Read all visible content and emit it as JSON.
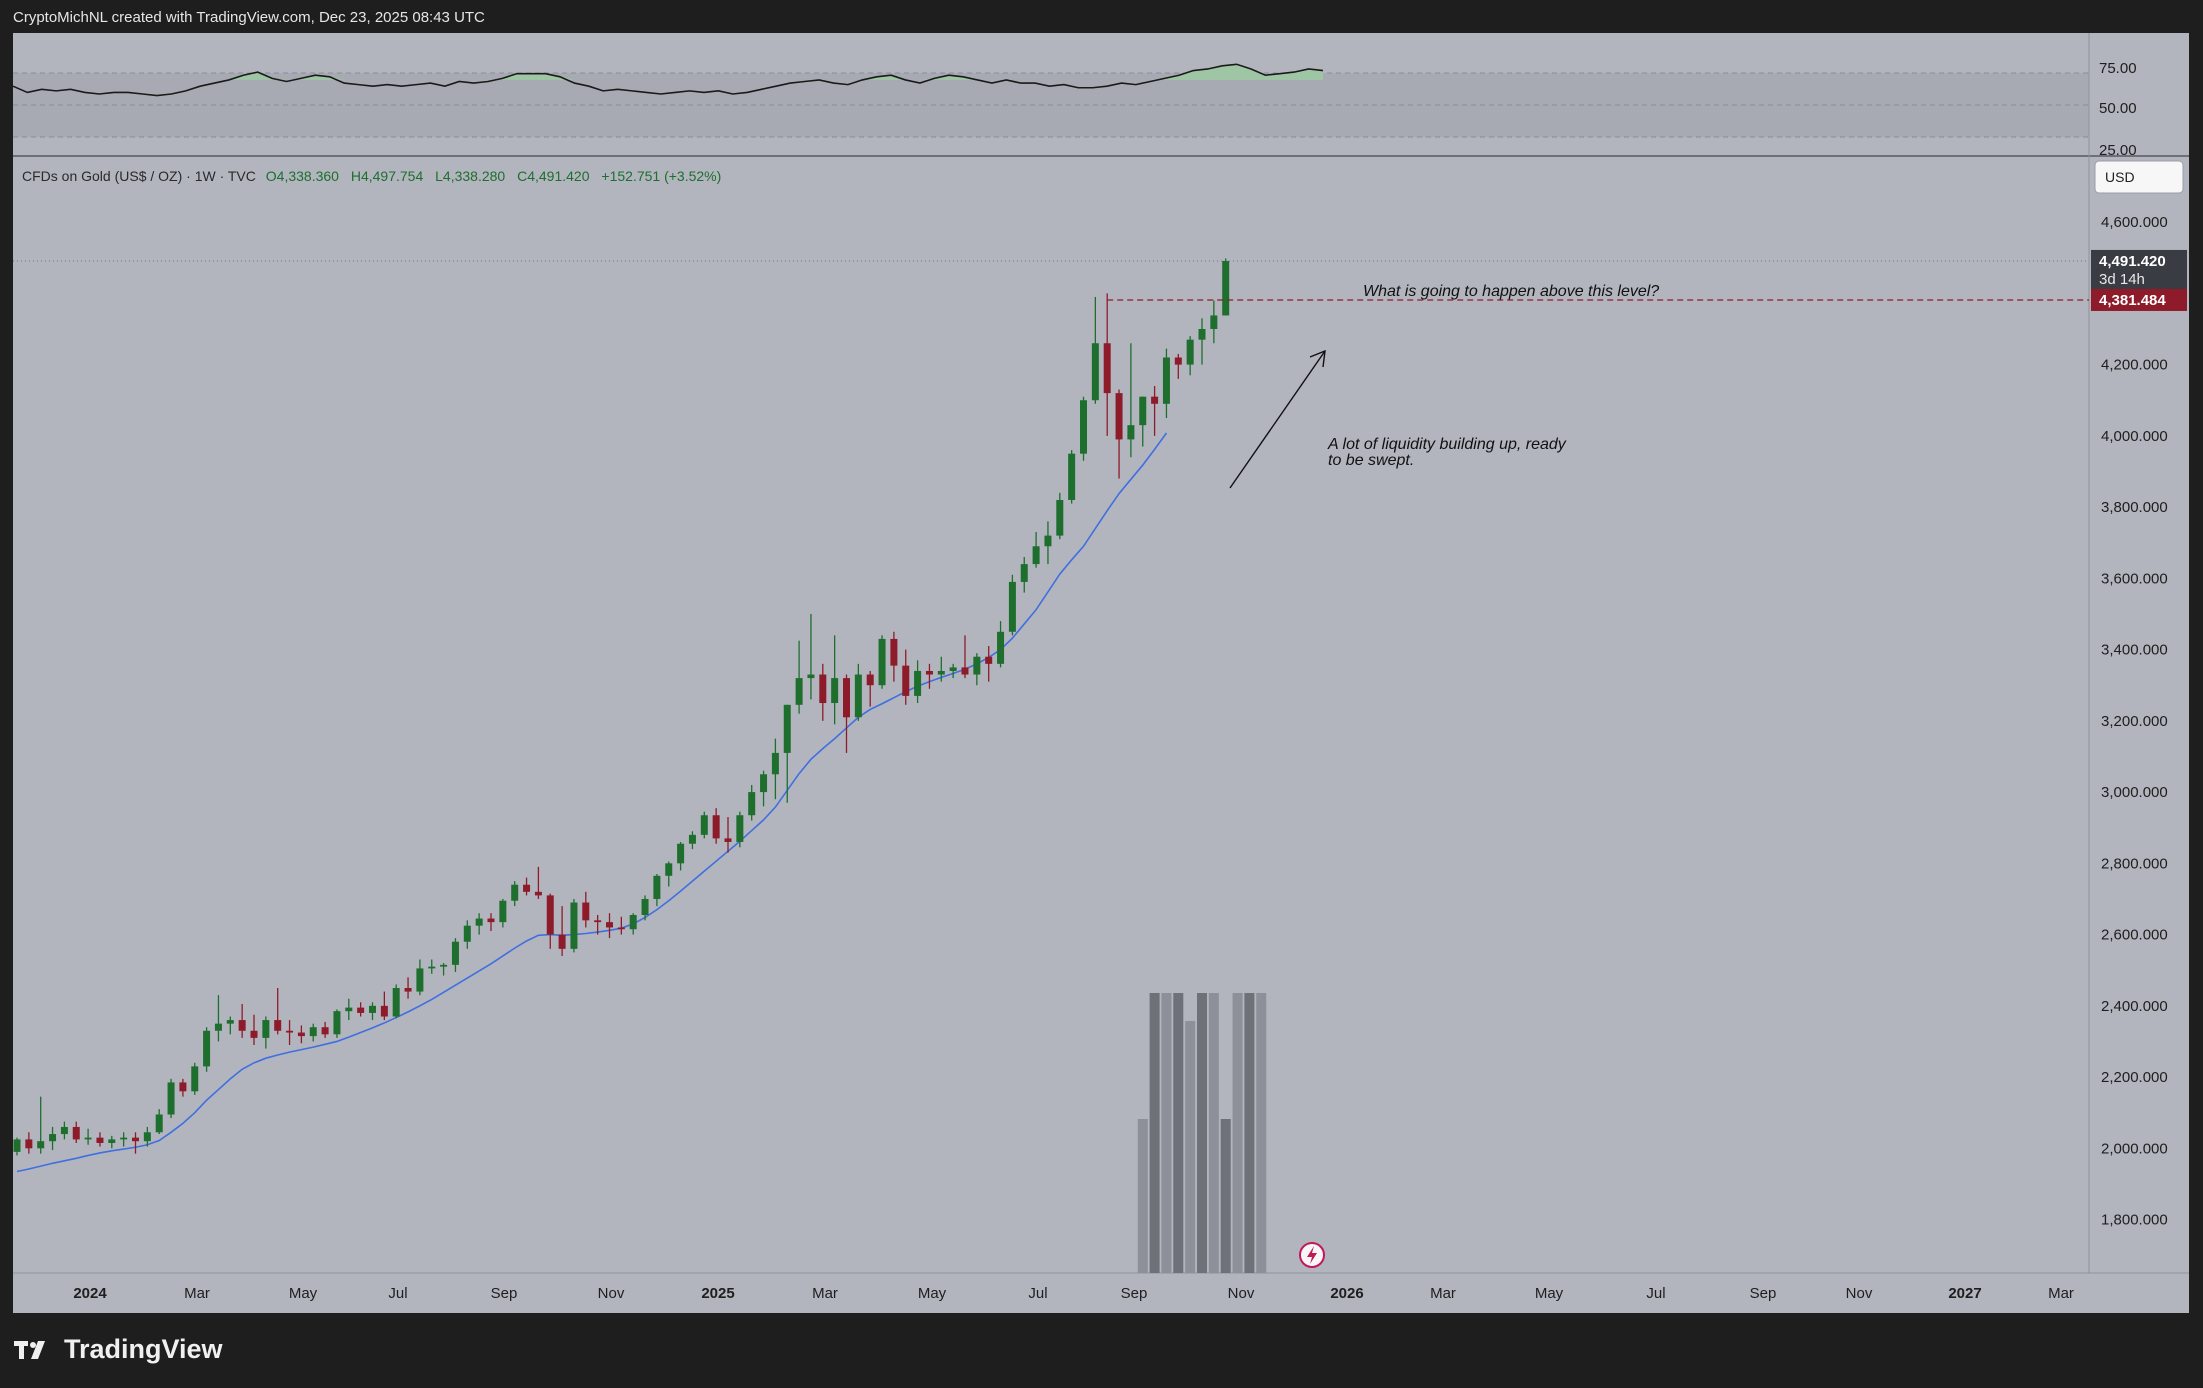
{
  "header": {
    "caption": "CryptoMichNL created with TradingView.com, Dec 23, 2025 08:43 UTC"
  },
  "footer": {
    "brand": "TradingView"
  },
  "colors": {
    "background": "#b2b5be",
    "up_candle": "#1e6e2e",
    "down_candle": "#8e1b2a",
    "ma_line": "#3f6fe0",
    "rsi_line": "#1a1a1a",
    "last_price_badge": "#3a3c44",
    "level_badge": "#8e1b2a"
  },
  "legend": {
    "symbol": "CFDs on Gold (US$ / OZ) · 1W · TVC",
    "open": "O4,338.360",
    "high": "H4,497.754",
    "low": "L4,338.280",
    "close": "C4,491.420",
    "change": "+152.751 (+3.52%)"
  },
  "currency": "USD",
  "price_axis": {
    "ticks": [
      "4,600.000",
      "4,200.000",
      "4,000.000",
      "3,800.000",
      "3,600.000",
      "3,400.000",
      "3,200.000",
      "3,000.000",
      "2,800.000",
      "2,600.000",
      "2,400.000",
      "2,200.000",
      "2,000.000",
      "1,800.000"
    ],
    "last_price": "4,491.420",
    "countdown": "3d 14h",
    "level_price": "4,381.484"
  },
  "rsi_axis": {
    "ticks": [
      "75.00",
      "50.00",
      "25.00"
    ]
  },
  "time_axis": {
    "ticks": [
      "2024",
      "Mar",
      "May",
      "Jul",
      "Sep",
      "Nov",
      "2025",
      "Mar",
      "May",
      "Jul",
      "Sep",
      "Nov",
      "2026",
      "Mar",
      "May",
      "Jul",
      "Sep",
      "Nov",
      "2027",
      "Mar"
    ]
  },
  "annotations": {
    "question": "What is going to happen above this level?",
    "liquidity_line1": "A lot of liquidity building up, ready",
    "liquidity_line2": "to be swept."
  },
  "chart_data": {
    "type": "candlestick",
    "timeframe": "1W",
    "ylim": [
      1650,
      4780
    ],
    "rsi_ylim": [
      22,
      100
    ],
    "level": 4381.484,
    "candles": [
      [
        1990,
        2030,
        1980,
        2025
      ],
      [
        2025,
        2045,
        1985,
        2000
      ],
      [
        2000,
        2145,
        1985,
        2020
      ],
      [
        2020,
        2060,
        1995,
        2040
      ],
      [
        2040,
        2075,
        2025,
        2060
      ],
      [
        2060,
        2075,
        2015,
        2025
      ],
      [
        2025,
        2055,
        2010,
        2030
      ],
      [
        2030,
        2045,
        2005,
        2015
      ],
      [
        2015,
        2035,
        2000,
        2025
      ],
      [
        2025,
        2045,
        2005,
        2030
      ],
      [
        2030,
        2045,
        1985,
        2020
      ],
      [
        2020,
        2060,
        2005,
        2045
      ],
      [
        2045,
        2110,
        2040,
        2095
      ],
      [
        2095,
        2195,
        2085,
        2185
      ],
      [
        2185,
        2195,
        2145,
        2160
      ],
      [
        2160,
        2240,
        2150,
        2230
      ],
      [
        2230,
        2340,
        2215,
        2330
      ],
      [
        2330,
        2430,
        2300,
        2350
      ],
      [
        2350,
        2370,
        2320,
        2360
      ],
      [
        2360,
        2405,
        2310,
        2330
      ],
      [
        2330,
        2375,
        2290,
        2310
      ],
      [
        2310,
        2370,
        2280,
        2360
      ],
      [
        2360,
        2450,
        2320,
        2330
      ],
      [
        2330,
        2360,
        2290,
        2325
      ],
      [
        2325,
        2345,
        2295,
        2315
      ],
      [
        2315,
        2350,
        2300,
        2340
      ],
      [
        2340,
        2355,
        2310,
        2320
      ],
      [
        2320,
        2390,
        2310,
        2385
      ],
      [
        2385,
        2420,
        2360,
        2395
      ],
      [
        2395,
        2410,
        2370,
        2380
      ],
      [
        2380,
        2410,
        2360,
        2400
      ],
      [
        2400,
        2440,
        2360,
        2370
      ],
      [
        2370,
        2460,
        2365,
        2450
      ],
      [
        2450,
        2480,
        2420,
        2440
      ],
      [
        2440,
        2530,
        2430,
        2505
      ],
      [
        2505,
        2530,
        2490,
        2510
      ],
      [
        2510,
        2520,
        2485,
        2515
      ],
      [
        2515,
        2590,
        2495,
        2580
      ],
      [
        2580,
        2640,
        2560,
        2625
      ],
      [
        2625,
        2660,
        2600,
        2645
      ],
      [
        2645,
        2660,
        2610,
        2635
      ],
      [
        2635,
        2700,
        2620,
        2695
      ],
      [
        2695,
        2750,
        2680,
        2740
      ],
      [
        2740,
        2760,
        2710,
        2720
      ],
      [
        2720,
        2790,
        2700,
        2710
      ],
      [
        2710,
        2715,
        2560,
        2600
      ],
      [
        2600,
        2680,
        2540,
        2560
      ],
      [
        2560,
        2700,
        2550,
        2690
      ],
      [
        2690,
        2720,
        2620,
        2640
      ],
      [
        2640,
        2655,
        2600,
        2635
      ],
      [
        2635,
        2660,
        2590,
        2620
      ],
      [
        2620,
        2650,
        2600,
        2615
      ],
      [
        2615,
        2660,
        2600,
        2655
      ],
      [
        2655,
        2710,
        2640,
        2700
      ],
      [
        2700,
        2770,
        2680,
        2765
      ],
      [
        2765,
        2805,
        2735,
        2800
      ],
      [
        2800,
        2860,
        2780,
        2855
      ],
      [
        2855,
        2890,
        2840,
        2880
      ],
      [
        2880,
        2945,
        2870,
        2935
      ],
      [
        2935,
        2955,
        2855,
        2870
      ],
      [
        2870,
        2930,
        2830,
        2860
      ],
      [
        2860,
        2945,
        2845,
        2935
      ],
      [
        2935,
        3020,
        2920,
        3000
      ],
      [
        3000,
        3060,
        2960,
        3050
      ],
      [
        3050,
        3150,
        2980,
        3110
      ],
      [
        3110,
        3245,
        2970,
        3245
      ],
      [
        3245,
        3425,
        3220,
        3320
      ],
      [
        3320,
        3500,
        3260,
        3330
      ],
      [
        3330,
        3360,
        3200,
        3250
      ],
      [
        3250,
        3440,
        3190,
        3320
      ],
      [
        3320,
        3330,
        3110,
        3210
      ],
      [
        3210,
        3360,
        3200,
        3330
      ],
      [
        3330,
        3340,
        3240,
        3300
      ],
      [
        3300,
        3440,
        3290,
        3430
      ],
      [
        3430,
        3450,
        3310,
        3355
      ],
      [
        3355,
        3400,
        3245,
        3270
      ],
      [
        3270,
        3370,
        3250,
        3340
      ],
      [
        3340,
        3360,
        3290,
        3330
      ],
      [
        3330,
        3380,
        3310,
        3340
      ],
      [
        3340,
        3360,
        3320,
        3350
      ],
      [
        3350,
        3440,
        3320,
        3330
      ],
      [
        3330,
        3390,
        3300,
        3380
      ],
      [
        3380,
        3410,
        3310,
        3360
      ],
      [
        3360,
        3480,
        3350,
        3450
      ],
      [
        3450,
        3610,
        3440,
        3590
      ],
      [
        3590,
        3660,
        3560,
        3640
      ],
      [
        3640,
        3730,
        3630,
        3690
      ],
      [
        3690,
        3760,
        3640,
        3720
      ],
      [
        3720,
        3840,
        3710,
        3820
      ],
      [
        3820,
        3960,
        3810,
        3950
      ],
      [
        3950,
        4110,
        3930,
        4100
      ],
      [
        4100,
        4390,
        4090,
        4260
      ],
      [
        4260,
        4400,
        4000,
        4120
      ],
      [
        4120,
        4130,
        3880,
        3990
      ],
      [
        3990,
        4260,
        3940,
        4030
      ],
      [
        4030,
        4110,
        3970,
        4110
      ],
      [
        4110,
        4140,
        4000,
        4090
      ],
      [
        4090,
        4245,
        4050,
        4220
      ],
      [
        4220,
        4230,
        4160,
        4200
      ],
      [
        4200,
        4280,
        4170,
        4270
      ],
      [
        4270,
        4330,
        4200,
        4300
      ],
      [
        4300,
        4380,
        4260,
        4338
      ],
      [
        4338,
        4498,
        4338,
        4491
      ]
    ],
    "ma": [
      1935,
      1942,
      1950,
      1958,
      1965,
      1972,
      1980,
      1987,
      1993,
      1998,
      2003,
      2010,
      2022,
      2045,
      2070,
      2100,
      2135,
      2165,
      2195,
      2222,
      2240,
      2253,
      2262,
      2270,
      2277,
      2284,
      2292,
      2300,
      2312,
      2325,
      2338,
      2352,
      2367,
      2383,
      2400,
      2418,
      2438,
      2458,
      2478,
      2498,
      2518,
      2540,
      2562,
      2582,
      2598,
      2600,
      2598,
      2600,
      2603,
      2607,
      2612,
      2618,
      2630,
      2648,
      2670,
      2695,
      2722,
      2750,
      2778,
      2806,
      2834,
      2862,
      2892,
      2922,
      2958,
      3005,
      3052,
      3092,
      3122,
      3150,
      3180,
      3210,
      3232,
      3248,
      3265,
      3282,
      3297,
      3310,
      3322,
      3333,
      3345,
      3360,
      3378,
      3400,
      3432,
      3472,
      3512,
      3562,
      3612,
      3652,
      3690,
      3740,
      3790,
      3838,
      3878,
      3918,
      3962,
      4008
    ],
    "rsi": [
      66,
      62,
      64,
      63,
      64,
      62,
      61,
      62,
      62,
      61,
      60,
      61,
      63,
      66,
      68,
      70,
      73,
      75,
      71,
      69,
      71,
      73,
      72,
      68,
      67,
      66,
      67,
      66,
      67,
      68,
      66,
      69,
      68,
      69,
      71,
      74,
      74,
      74,
      72,
      68,
      66,
      63,
      64,
      63,
      62,
      61,
      62,
      63,
      62,
      63,
      61,
      62,
      64,
      66,
      68,
      69,
      70,
      68,
      67,
      70,
      72,
      73,
      70,
      68,
      71,
      73,
      72,
      70,
      68,
      70,
      68,
      68,
      66,
      67,
      65,
      65,
      66,
      68,
      67,
      69,
      71,
      73,
      76,
      77,
      79,
      80,
      77,
      73,
      74,
      75,
      77,
      76
    ],
    "volume_bars": [
      0.55,
      1,
      1,
      1,
      0.9,
      1,
      1,
      0.55,
      1,
      1,
      1
    ]
  }
}
